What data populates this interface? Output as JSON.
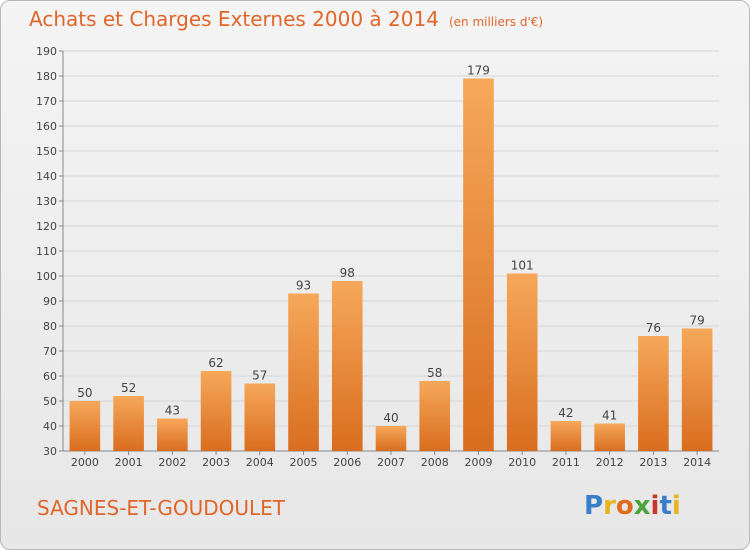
{
  "header": {
    "title": "Achats et Charges Externes 2000 à 2014",
    "unit": "(en milliers d'€)"
  },
  "footer": {
    "location": "SAGNES-ET-GOUDOULET",
    "brand": "Proxiti"
  },
  "colors": {
    "title": "#e0662a",
    "bar_top": "#f6a85a",
    "bar_bottom": "#d96d1f",
    "grid": "#d5d5d5"
  },
  "chart_data": {
    "type": "bar",
    "categories": [
      "2000",
      "2001",
      "2002",
      "2003",
      "2004",
      "2005",
      "2006",
      "2007",
      "2008",
      "2009",
      "2010",
      "2011",
      "2012",
      "2013",
      "2014"
    ],
    "values": [
      50,
      52,
      43,
      62,
      57,
      93,
      98,
      40,
      58,
      179,
      101,
      42,
      41,
      76,
      79
    ],
    "ylim": [
      30,
      190
    ],
    "yticks": [
      30,
      40,
      50,
      60,
      70,
      80,
      90,
      100,
      110,
      120,
      130,
      140,
      150,
      160,
      170,
      180,
      190
    ],
    "title": "Achats et Charges Externes 2000 à 2014",
    "xlabel": "",
    "ylabel": "",
    "grid": true,
    "data_labels": true
  }
}
